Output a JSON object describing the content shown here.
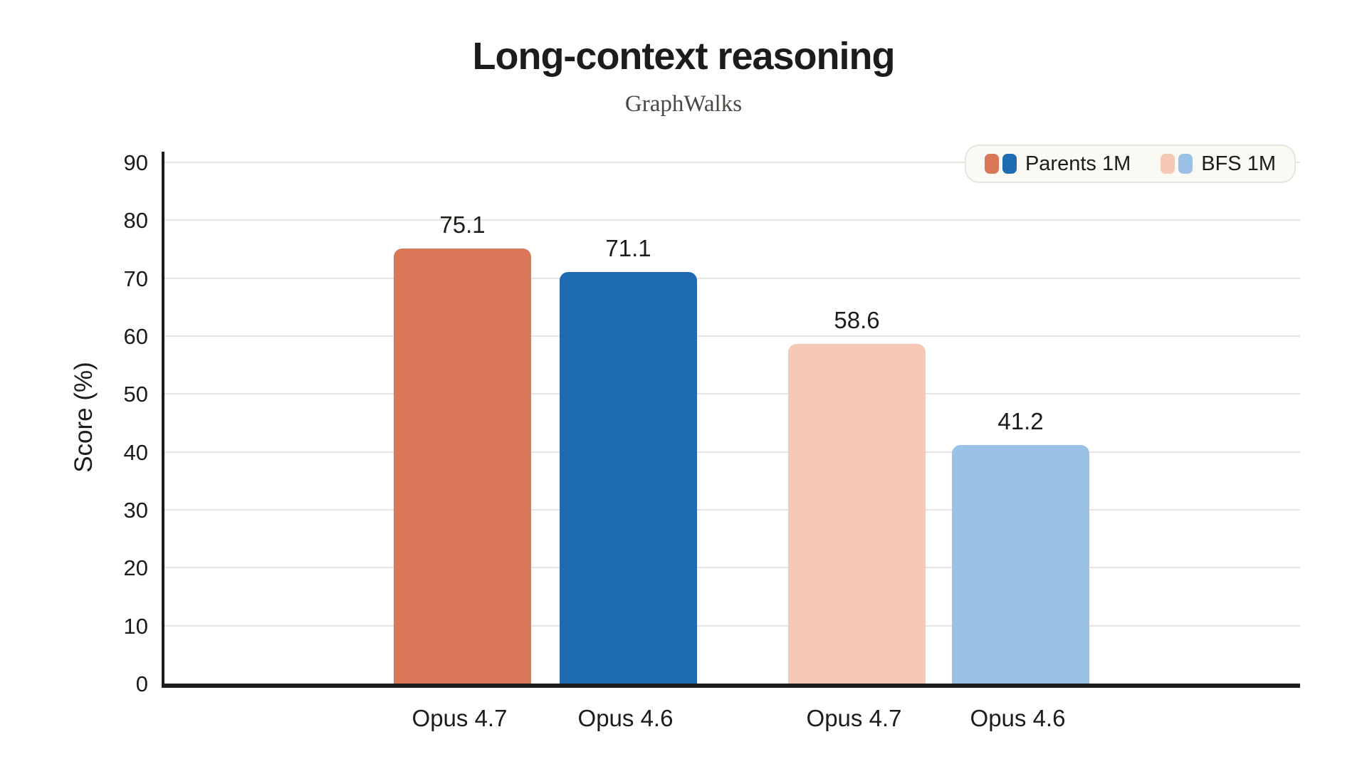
{
  "header": {
    "title": "Long-context reasoning",
    "subtitle": "GraphWalks"
  },
  "chart_data": {
    "type": "bar",
    "title": "Long-context reasoning",
    "subtitle": "GraphWalks",
    "xlabel": "",
    "ylabel": "Score (%)",
    "ylim": [
      0,
      90
    ],
    "ytick_step": 10,
    "yticks": [
      0,
      10,
      20,
      30,
      40,
      50,
      60,
      70,
      80,
      90
    ],
    "grid": true,
    "legend_position": "top-right",
    "categories": [
      "Opus 4.7",
      "Opus 4.6",
      "Opus 4.7",
      "Opus 4.6"
    ],
    "series": [
      {
        "name": "Parents 1M",
        "models": [
          "Opus 4.7",
          "Opus 4.6"
        ],
        "values": [
          75.1,
          71.1
        ],
        "colors": [
          "#d97757",
          "#1e6bb2"
        ]
      },
      {
        "name": "BFS 1M",
        "models": [
          "Opus 4.7",
          "Opus 4.6"
        ],
        "values": [
          58.6,
          41.2
        ],
        "colors": [
          "#f5c9b6",
          "#9cc1e6"
        ]
      }
    ],
    "bars": [
      {
        "label": "Opus 4.7",
        "value": 75.1,
        "value_label": "75.1",
        "series": "Parents 1M",
        "color": "#d97757"
      },
      {
        "label": "Opus 4.6",
        "value": 71.1,
        "value_label": "71.1",
        "series": "Parents 1M",
        "color": "#1e6bb2"
      },
      {
        "label": "Opus 4.7",
        "value": 58.6,
        "value_label": "58.6",
        "series": "BFS 1M",
        "color": "#f5c9b6"
      },
      {
        "label": "Opus 4.6",
        "value": 41.2,
        "value_label": "41.2",
        "series": "BFS 1M",
        "color": "#9cc1e6"
      }
    ],
    "legend": [
      {
        "label": "Parents 1M",
        "swatches": [
          "#d97757",
          "#1e6bb2"
        ]
      },
      {
        "label": "BFS 1M",
        "swatches": [
          "#f5c9b6",
          "#9cc1e6"
        ]
      }
    ]
  },
  "colors": {
    "background": "#ffffff",
    "axis": "#1d1c1a",
    "grid": "#e8e5df",
    "text": "#1d1c1a",
    "subtitle_text": "#4a4842",
    "legend_bg": "#faf9f3",
    "legend_border": "#e8e5dd"
  }
}
